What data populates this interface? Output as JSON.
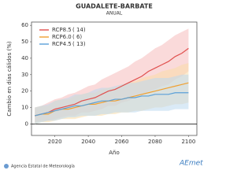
{
  "chart_data": {
    "type": "line",
    "title": "GUADALETE-BARBATE",
    "subtitle": "ANUAL",
    "ylabel": "Cambio en días cálidos (%)",
    "xlabel": "Año",
    "source": "Agencia Estatal de Meteorología",
    "logo_text": "AEmet",
    "x": [
      2008,
      2012,
      2016,
      2020,
      2024,
      2028,
      2032,
      2036,
      2040,
      2044,
      2048,
      2052,
      2056,
      2060,
      2064,
      2068,
      2072,
      2076,
      2080,
      2084,
      2088,
      2092,
      2096,
      2100
    ],
    "xlim": [
      2006,
      2105
    ],
    "xticks": [
      2020,
      2040,
      2060,
      2080,
      2100
    ],
    "ylim": [
      -7,
      62
    ],
    "yticks": [
      0,
      10,
      20,
      30,
      40,
      50,
      60
    ],
    "zero_line": true,
    "series": [
      {
        "name": "RCP8.5",
        "legend_note": "( 14)",
        "color": "#e0504e",
        "band_color": "#f6bcbc",
        "values": [
          5,
          6,
          7,
          9,
          10,
          11,
          12,
          14,
          15,
          16,
          18,
          20,
          21,
          23,
          25,
          27,
          29,
          32,
          34,
          36,
          38,
          41,
          43,
          46
        ],
        "upper": [
          10,
          11,
          13,
          15,
          16,
          18,
          19,
          21,
          23,
          24,
          27,
          29,
          31,
          33,
          35,
          38,
          40,
          43,
          46,
          48,
          51,
          54,
          56,
          58
        ],
        "lower": [
          1,
          2,
          2,
          3,
          4,
          5,
          5,
          7,
          7,
          8,
          9,
          11,
          11,
          13,
          14,
          16,
          17,
          20,
          21,
          23,
          24,
          27,
          29,
          32
        ]
      },
      {
        "name": "RCP6.0",
        "legend_note": "(   6)",
        "color": "#f0a030",
        "band_color": "#fadca8",
        "values": [
          5,
          6,
          6,
          8,
          9,
          9,
          10,
          11,
          12,
          12,
          13,
          14,
          14,
          15,
          16,
          17,
          18,
          19,
          20,
          21,
          22,
          23,
          24,
          25
        ],
        "upper": [
          10,
          11,
          11,
          14,
          15,
          15,
          17,
          18,
          19,
          19,
          21,
          22,
          22,
          24,
          25,
          26,
          28,
          29,
          30,
          32,
          33,
          34,
          36,
          37
        ],
        "lower": [
          0,
          1,
          1,
          2,
          3,
          3,
          3,
          4,
          5,
          5,
          5,
          6,
          6,
          7,
          7,
          8,
          8,
          9,
          10,
          10,
          11,
          12,
          12,
          13
        ]
      },
      {
        "name": "RCP4.5",
        "legend_note": "( 13)",
        "color": "#5aa0d8",
        "band_color": "#bcd9ef",
        "values": [
          5,
          6,
          7,
          8,
          9,
          10,
          11,
          11,
          12,
          13,
          14,
          14,
          15,
          15,
          16,
          16,
          17,
          17,
          18,
          18,
          18,
          19,
          19,
          19
        ],
        "upper": [
          10,
          11,
          12,
          14,
          15,
          16,
          18,
          18,
          19,
          21,
          22,
          22,
          23,
          24,
          25,
          25,
          26,
          27,
          28,
          28,
          28,
          29,
          30,
          30
        ],
        "lower": [
          0,
          1,
          2,
          2,
          3,
          4,
          4,
          5,
          5,
          5,
          6,
          6,
          7,
          7,
          7,
          7,
          8,
          8,
          8,
          8,
          8,
          9,
          9,
          9
        ]
      }
    ]
  }
}
